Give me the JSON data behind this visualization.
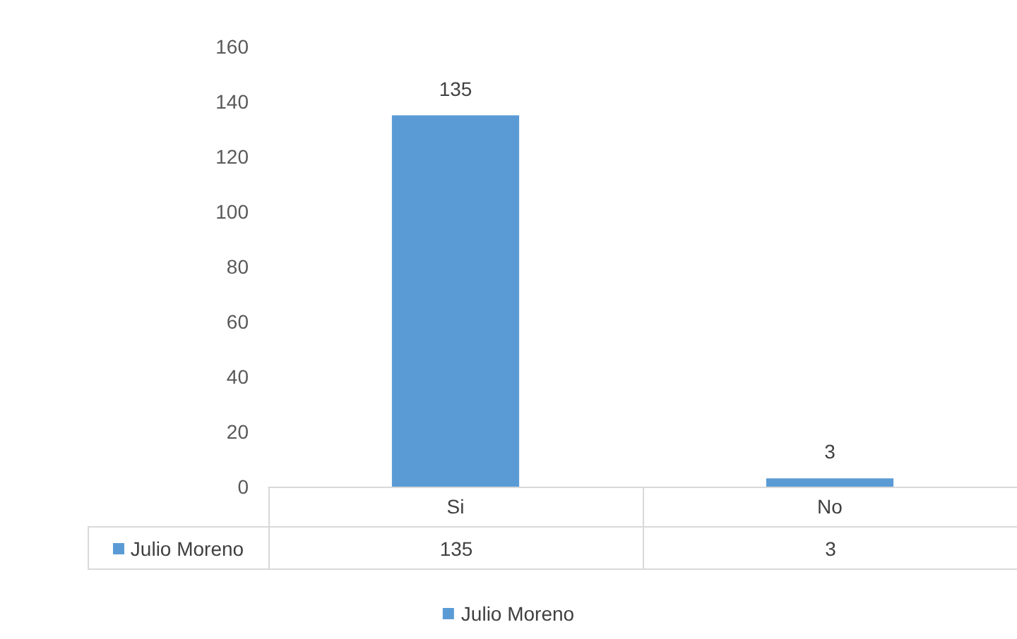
{
  "chart_data": {
    "type": "bar",
    "categories": [
      "Si",
      "No"
    ],
    "series": [
      {
        "name": "Julio Moreno",
        "color": "#5b9bd5",
        "values": [
          135,
          3
        ]
      }
    ],
    "ylim": [
      0,
      160
    ],
    "yticks": [
      0,
      20,
      40,
      60,
      80,
      100,
      120,
      140,
      160
    ],
    "grid": false,
    "legend": "bottom",
    "data_labels": true,
    "annotations": [
      "135",
      "3"
    ]
  }
}
